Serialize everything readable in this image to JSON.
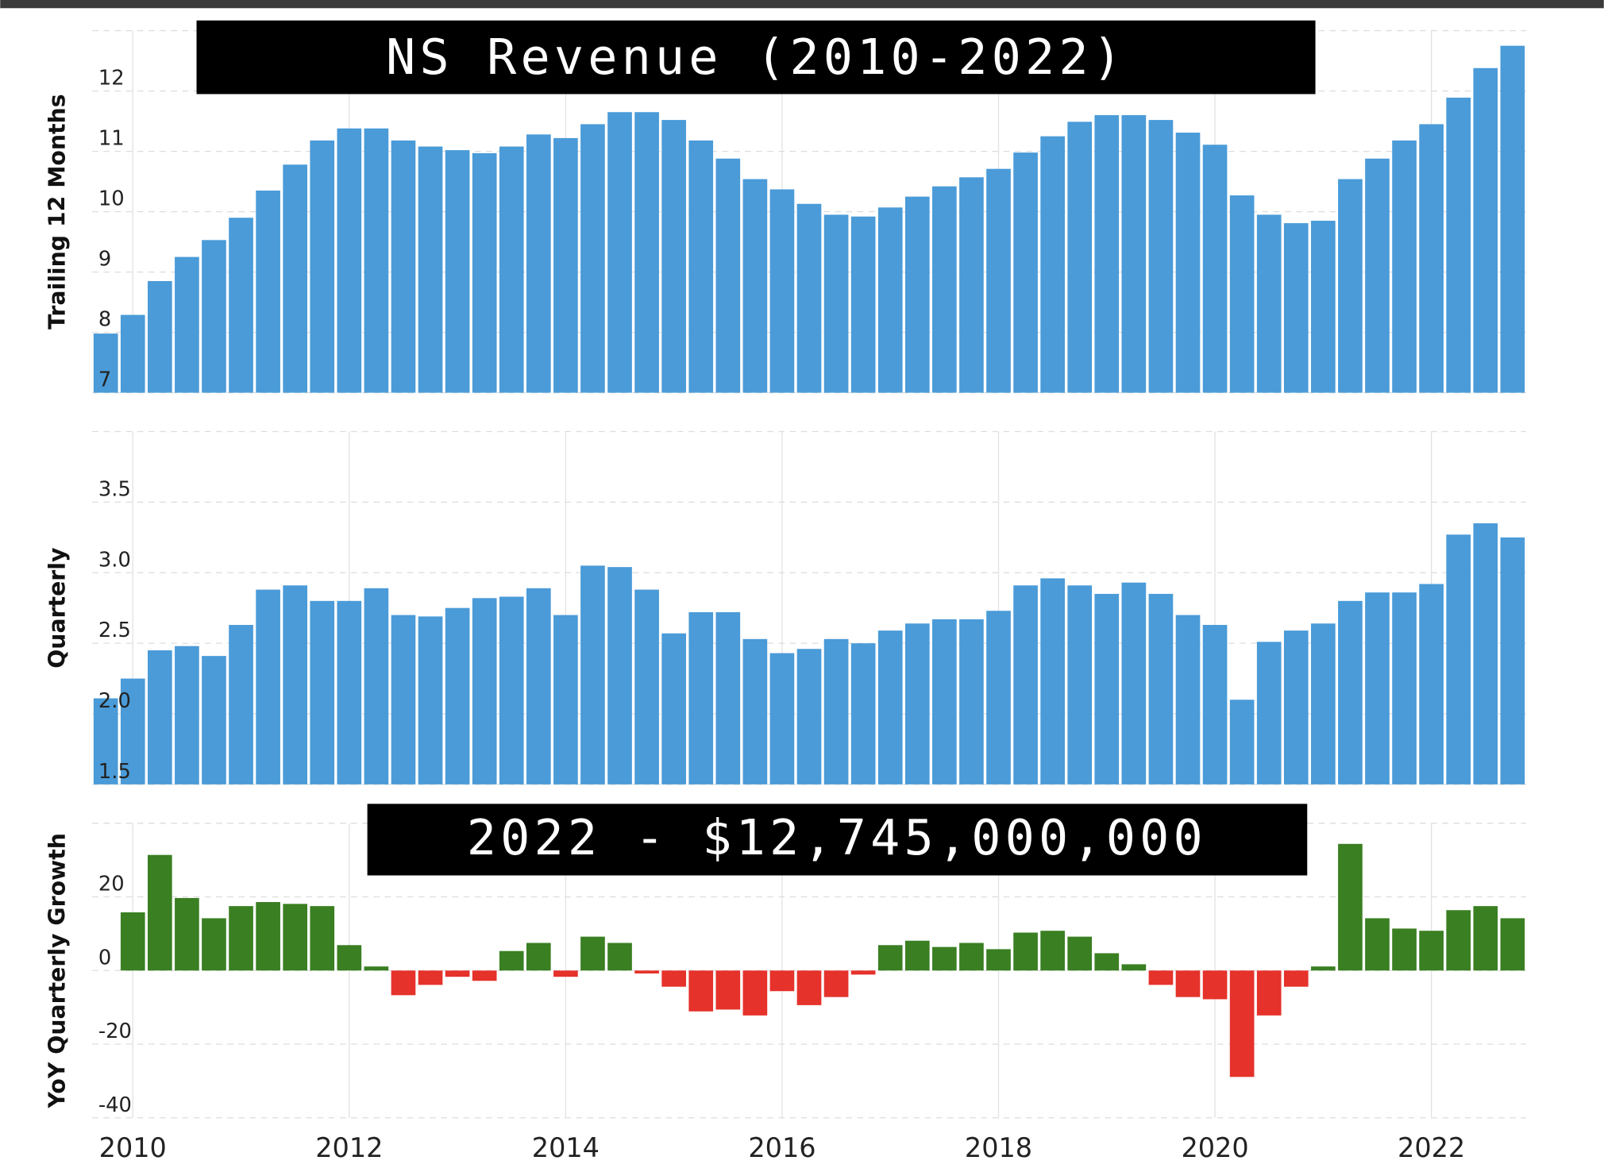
{
  "chart_data": [
    {
      "type": "bar",
      "title": "NS Revenue (2010-2022)",
      "y_label": "Trailing 12 Months",
      "color": "#4a9bd8",
      "x": [
        2009.75,
        2010,
        2010.25,
        2010.5,
        2010.75,
        2011,
        2011.25,
        2011.5,
        2011.75,
        2012,
        2012.25,
        2012.5,
        2012.75,
        2013,
        2013.25,
        2013.5,
        2013.75,
        2014,
        2014.25,
        2014.5,
        2014.75,
        2015,
        2015.25,
        2015.5,
        2015.75,
        2016,
        2016.25,
        2016.5,
        2016.75,
        2017,
        2017.25,
        2017.5,
        2017.75,
        2018,
        2018.25,
        2018.5,
        2018.75,
        2019,
        2019.25,
        2019.5,
        2019.75,
        2020,
        2020.25,
        2020.5,
        2020.75,
        2021,
        2021.25,
        2021.5,
        2021.75,
        2022,
        2022.25,
        2022.5,
        2022.75
      ],
      "values": [
        7.98,
        8.29,
        8.85,
        9.25,
        9.53,
        9.9,
        10.35,
        10.78,
        11.18,
        11.38,
        11.38,
        11.18,
        11.08,
        11.02,
        10.97,
        11.08,
        11.28,
        11.22,
        11.45,
        11.65,
        11.65,
        11.52,
        11.18,
        10.88,
        10.54,
        10.37,
        10.13,
        9.95,
        9.92,
        10.07,
        10.25,
        10.42,
        10.57,
        10.71,
        10.98,
        11.25,
        11.49,
        11.6,
        11.6,
        11.52,
        11.31,
        11.11,
        10.27,
        9.95,
        9.81,
        9.85,
        10.54,
        10.88,
        11.18,
        11.45,
        11.89,
        12.38,
        12.75
      ],
      "xlim": [
        2009.625,
        2022.875
      ],
      "ylim": [
        7,
        13
      ],
      "yticks": [
        7,
        8,
        9,
        10,
        11,
        12
      ],
      "grid": true
    },
    {
      "type": "bar",
      "y_label": "Quarterly",
      "color": "#4a9bd8",
      "x": [
        2009.75,
        2010,
        2010.25,
        2010.5,
        2010.75,
        2011,
        2011.25,
        2011.5,
        2011.75,
        2012,
        2012.25,
        2012.5,
        2012.75,
        2013,
        2013.25,
        2013.5,
        2013.75,
        2014,
        2014.25,
        2014.5,
        2014.75,
        2015,
        2015.25,
        2015.5,
        2015.75,
        2016,
        2016.25,
        2016.5,
        2016.75,
        2017,
        2017.25,
        2017.5,
        2017.75,
        2018,
        2018.25,
        2018.5,
        2018.75,
        2019,
        2019.25,
        2019.5,
        2019.75,
        2020,
        2020.25,
        2020.5,
        2020.75,
        2021,
        2021.25,
        2021.5,
        2021.75,
        2022,
        2022.25,
        2022.5,
        2022.75
      ],
      "values": [
        2.11,
        2.25,
        2.45,
        2.48,
        2.41,
        2.63,
        2.88,
        2.91,
        2.8,
        2.8,
        2.89,
        2.7,
        2.69,
        2.75,
        2.82,
        2.83,
        2.89,
        2.7,
        3.05,
        3.04,
        2.88,
        2.57,
        2.72,
        2.72,
        2.53,
        2.43,
        2.46,
        2.53,
        2.5,
        2.59,
        2.64,
        2.67,
        2.67,
        2.73,
        2.91,
        2.96,
        2.91,
        2.85,
        2.93,
        2.85,
        2.7,
        2.63,
        2.1,
        2.51,
        2.59,
        2.64,
        2.8,
        2.86,
        2.86,
        2.92,
        3.27,
        3.35,
        3.25
      ],
      "xlim": [
        2009.625,
        2022.875
      ],
      "ylim": [
        1.5,
        4
      ],
      "yticks": [
        1.5,
        {
          "value": 2,
          "label": "2.0"
        },
        2.5,
        {
          "value": 3,
          "label": "3.0"
        },
        3.5
      ],
      "grid": true
    },
    {
      "type": "bar",
      "y_label": "YoY Quarterly Growth",
      "annotation": "2022 - $12,745,000,000",
      "positive_color": "#3a7f22",
      "negative_color": "#e5322b",
      "x": [
        2009.75,
        2010,
        2010.25,
        2010.5,
        2010.75,
        2011,
        2011.25,
        2011.5,
        2011.75,
        2012,
        2012.25,
        2012.5,
        2012.75,
        2013,
        2013.25,
        2013.5,
        2013.75,
        2014,
        2014.25,
        2014.5,
        2014.75,
        2015,
        2015.25,
        2015.5,
        2015.75,
        2016,
        2016.25,
        2016.5,
        2016.75,
        2017,
        2017.25,
        2017.5,
        2017.75,
        2018,
        2018.25,
        2018.5,
        2018.75,
        2019,
        2019.25,
        2019.5,
        2019.75,
        2020,
        2020.25,
        2020.5,
        2020.75,
        2021,
        2021.25,
        2021.5,
        2021.75,
        2022,
        2022.25,
        2022.5,
        2022.75
      ],
      "values": [
        null,
        15.8,
        31.4,
        19.7,
        14.2,
        17.5,
        18.6,
        18.1,
        17.5,
        6.9,
        1.1,
        -6.7,
        -3.9,
        -1.7,
        -2.8,
        5.3,
        7.5,
        -1.7,
        9.2,
        7.5,
        -0.8,
        -4.4,
        -11.1,
        -10.6,
        -12.2,
        -5.6,
        -9.4,
        -7.2,
        -1.1,
        6.9,
        8.1,
        6.4,
        7.5,
        5.8,
        10.3,
        10.8,
        9.2,
        4.7,
        1.7,
        -3.9,
        -7.2,
        -7.8,
        -28.9,
        -12.2,
        -4.4,
        1.1,
        34.4,
        14.2,
        11.4,
        10.8,
        16.4,
        17.5,
        14.2
      ],
      "xlim": [
        2009.625,
        2022.875
      ],
      "xticks": [
        2010,
        2012,
        2014,
        2016,
        2018,
        2020,
        2022
      ],
      "ylim": [
        -40,
        40
      ],
      "yticks": [
        -40,
        -20,
        0,
        20
      ],
      "grid": true
    }
  ]
}
